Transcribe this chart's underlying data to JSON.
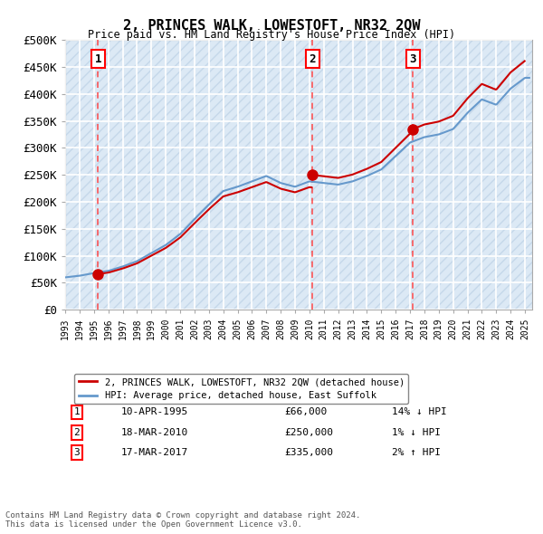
{
  "title": "2, PRINCES WALK, LOWESTOFT, NR32 2QW",
  "subtitle": "Price paid vs. HM Land Registry's House Price Index (HPI)",
  "ylabel": "",
  "xlabel": "",
  "ylim": [
    0,
    500000
  ],
  "xlim_start": 1993.0,
  "xlim_end": 2025.5,
  "yticks": [
    0,
    50000,
    100000,
    150000,
    200000,
    250000,
    300000,
    350000,
    400000,
    450000,
    500000
  ],
  "ytick_labels": [
    "£0",
    "£50K",
    "£100K",
    "£150K",
    "£200K",
    "£250K",
    "£300K",
    "£350K",
    "£400K",
    "£450K",
    "£500K"
  ],
  "bg_color": "#dce9f5",
  "hatch_color": "#b0c8e0",
  "grid_color": "#ffffff",
  "transactions": [
    {
      "num": 1,
      "date": "10-APR-1995",
      "price": 66000,
      "year": 1995.28,
      "pct": "14%",
      "dir": "↓"
    },
    {
      "num": 2,
      "date": "18-MAR-2010",
      "price": 250000,
      "year": 2010.21,
      "pct": "1%",
      "dir": "↓"
    },
    {
      "num": 3,
      "date": "17-MAR-2017",
      "price": 335000,
      "year": 2017.21,
      "pct": "2%",
      "dir": "↑"
    }
  ],
  "legend_property": "2, PRINCES WALK, LOWESTOFT, NR32 2QW (detached house)",
  "legend_hpi": "HPI: Average price, detached house, East Suffolk",
  "footer": "Contains HM Land Registry data © Crown copyright and database right 2024.\nThis data is licensed under the Open Government Licence v3.0.",
  "property_color": "#cc0000",
  "hpi_color": "#6699cc",
  "marker_color": "#cc0000",
  "vline_color": "#ff4444"
}
